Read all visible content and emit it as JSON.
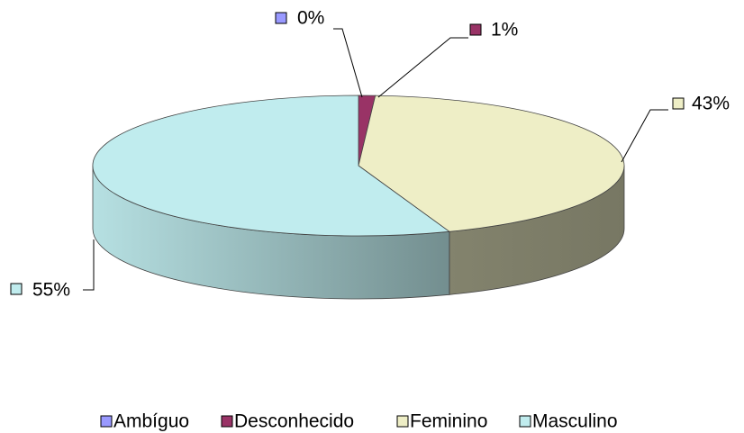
{
  "chart_data": {
    "type": "pie3d",
    "categories": [
      "Ambíguo",
      "Desconhecido",
      "Feminino",
      "Masculino"
    ],
    "values": [
      0,
      1,
      43,
      55
    ],
    "value_labels": [
      "0%",
      "1%",
      "43%",
      "55%"
    ],
    "colors": [
      "#9999ff",
      "#993366",
      "#eeeec6",
      "#c0ecee"
    ],
    "legend": "bottom"
  }
}
